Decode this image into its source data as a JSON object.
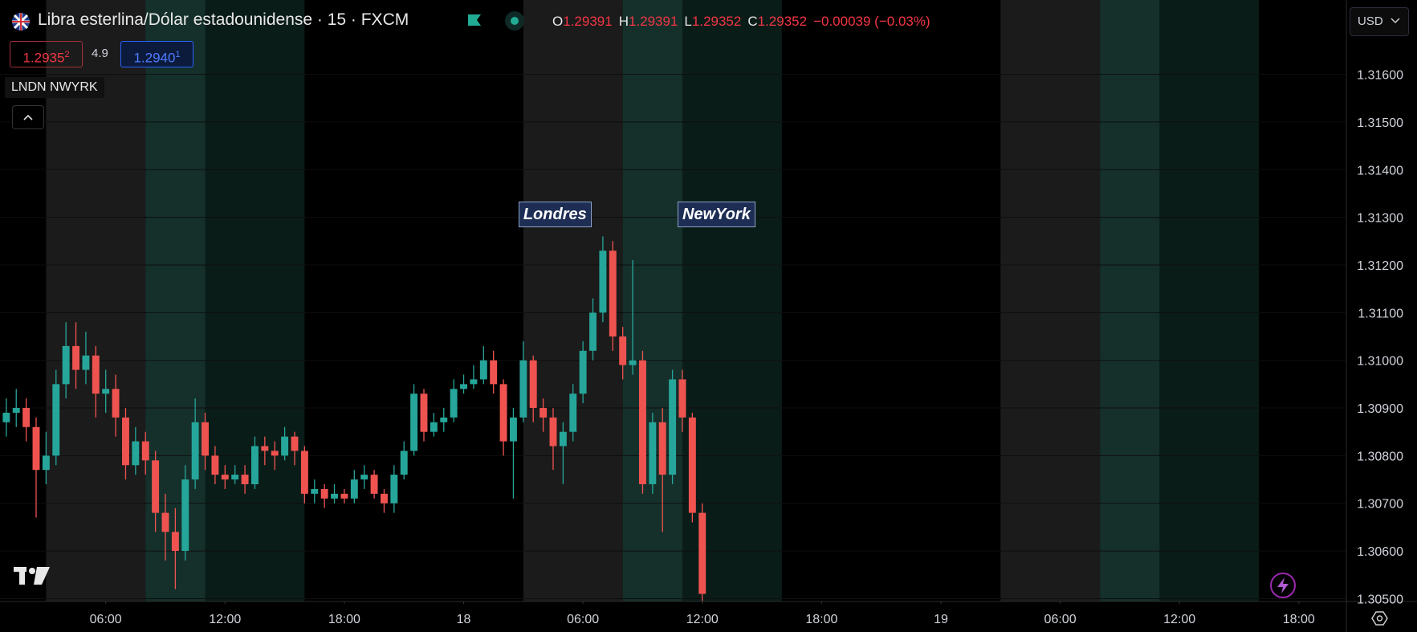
{
  "header": {
    "title": "Libra esterlina/Dólar estadounidense · 15 · FXCM",
    "ohlc": [
      {
        "key": "O",
        "value": "1.29391"
      },
      {
        "key": "H",
        "value": "1.29391"
      },
      {
        "key": "L",
        "value": "1.29352"
      },
      {
        "key": "C",
        "value": "1.29352"
      }
    ],
    "change": "−0.00039 (−0.03%)",
    "bid": {
      "main": "1.2935",
      "pip": "2"
    },
    "spread": "4.9",
    "ask": {
      "main": "1.2940",
      "pip": "1"
    },
    "indicator": "LNDN NWYRK",
    "currency": "USD"
  },
  "chart_data": {
    "type": "candlestick",
    "x": [
      1.0,
      1.5,
      2.0,
      2.5,
      3.0,
      3.5,
      4.0,
      4.5,
      5.0,
      5.5,
      6.0,
      6.5,
      7.0,
      7.5,
      8.0,
      8.5,
      9.0,
      9.5,
      10.0,
      10.5,
      11.0,
      11.5,
      12.0,
      12.5,
      13.0,
      13.5,
      14.0,
      14.5,
      15.0,
      15.5,
      16.0,
      16.5,
      17.0,
      17.5,
      18.0,
      18.5,
      19.0,
      19.5,
      20.0,
      20.5,
      21.0,
      21.5,
      22.0,
      22.5,
      23.0,
      23.5,
      24.0,
      24.5,
      25.0,
      25.5,
      26.0,
      26.5,
      27.0,
      27.5,
      28.0,
      28.5,
      29.0,
      29.5,
      30.0,
      30.5,
      31.0,
      31.5,
      32.0,
      32.5,
      33.0,
      33.5,
      34.0,
      34.5,
      35.0,
      35.5,
      36.0
    ],
    "open": [
      1.3087,
      1.3089,
      1.309,
      1.3086,
      1.3077,
      1.308,
      1.3095,
      1.3103,
      1.3098,
      1.3101,
      1.3093,
      1.3094,
      1.3088,
      1.3078,
      1.3083,
      1.3079,
      1.3068,
      1.3064,
      1.306,
      1.3075,
      1.3087,
      1.308,
      1.3076,
      1.3075,
      1.3076,
      1.3074,
      1.3082,
      1.3081,
      1.308,
      1.3084,
      1.3081,
      1.3072,
      1.3073,
      1.3071,
      1.3072,
      1.3071,
      1.3075,
      1.3076,
      1.3072,
      1.307,
      1.3076,
      1.3081,
      1.3093,
      1.3085,
      1.3087,
      1.3088,
      1.3094,
      1.3095,
      1.3096,
      1.31,
      1.3095,
      1.3083,
      1.3088,
      1.31,
      1.309,
      1.3088,
      1.3082,
      1.3085,
      1.3093,
      1.3102,
      1.311,
      1.3123,
      1.3105,
      1.3099,
      1.31,
      1.3074,
      1.3087,
      1.3076,
      1.3096,
      1.3088,
      1.3068
    ],
    "high": [
      1.3092,
      1.3094,
      1.3092,
      1.3088,
      1.3085,
      1.3098,
      1.3108,
      1.3108,
      1.3106,
      1.3103,
      1.3098,
      1.3097,
      1.309,
      1.3086,
      1.3085,
      1.3081,
      1.3072,
      1.3069,
      1.3078,
      1.3092,
      1.3089,
      1.3082,
      1.3078,
      1.3078,
      1.3078,
      1.3084,
      1.3084,
      1.3083,
      1.3086,
      1.3085,
      1.3082,
      1.3075,
      1.3074,
      1.3074,
      1.3073,
      1.3077,
      1.3078,
      1.3077,
      1.3073,
      1.3078,
      1.3083,
      1.3095,
      1.3094,
      1.3089,
      1.309,
      1.3096,
      1.3097,
      1.3099,
      1.3103,
      1.3102,
      1.3096,
      1.309,
      1.3104,
      1.3101,
      1.3092,
      1.309,
      1.3087,
      1.3095,
      1.3104,
      1.3113,
      1.3126,
      1.3125,
      1.3107,
      1.3121,
      1.3102,
      1.3089,
      1.309,
      1.3098,
      1.3098,
      1.3089,
      1.307
    ],
    "low": [
      1.3084,
      1.3086,
      1.3083,
      1.3067,
      1.3074,
      1.3078,
      1.3092,
      1.3094,
      1.3095,
      1.3088,
      1.3089,
      1.3084,
      1.3075,
      1.3076,
      1.3076,
      1.3064,
      1.3058,
      1.3052,
      1.3058,
      1.3073,
      1.3077,
      1.3074,
      1.3073,
      1.3074,
      1.3072,
      1.3073,
      1.3078,
      1.3077,
      1.3079,
      1.3078,
      1.307,
      1.307,
      1.3069,
      1.307,
      1.307,
      1.307,
      1.3073,
      1.3071,
      1.3068,
      1.3068,
      1.3075,
      1.308,
      1.3083,
      1.3084,
      1.3085,
      1.3087,
      1.3093,
      1.3094,
      1.3095,
      1.3093,
      1.308,
      1.3071,
      1.3087,
      1.3087,
      1.3085,
      1.3077,
      1.3074,
      1.3083,
      1.3091,
      1.31,
      1.3108,
      1.3102,
      1.3096,
      1.3097,
      1.3072,
      1.3072,
      1.3064,
      1.3074,
      1.3085,
      1.3066,
      1.3049
    ],
    "close": [
      1.3089,
      1.309,
      1.3086,
      1.3077,
      1.308,
      1.3095,
      1.3103,
      1.3098,
      1.3101,
      1.3093,
      1.3094,
      1.3088,
      1.3078,
      1.3083,
      1.3079,
      1.3068,
      1.3064,
      1.306,
      1.3075,
      1.3087,
      1.308,
      1.3076,
      1.3075,
      1.3076,
      1.3074,
      1.3082,
      1.3081,
      1.308,
      1.3084,
      1.3081,
      1.3072,
      1.3073,
      1.3071,
      1.3072,
      1.3071,
      1.3075,
      1.3076,
      1.3072,
      1.307,
      1.3076,
      1.3081,
      1.3093,
      1.3085,
      1.3087,
      1.3088,
      1.3094,
      1.3095,
      1.3096,
      1.31,
      1.3095,
      1.3083,
      1.3088,
      1.31,
      1.309,
      1.3088,
      1.3082,
      1.3085,
      1.3093,
      1.3102,
      1.311,
      1.3123,
      1.3105,
      1.3099,
      1.31,
      1.3074,
      1.3087,
      1.3076,
      1.3096,
      1.3088,
      1.3068,
      1.3051
    ],
    "up_color": "#26a69a",
    "down_color": "#ef5350",
    "xlim": [
      0.683,
      68.39
    ],
    "xticks": [
      {
        "value": 6,
        "label": "06:00"
      },
      {
        "value": 12,
        "label": "12:00"
      },
      {
        "value": 18,
        "label": "18:00"
      },
      {
        "value": 24,
        "label": "18"
      },
      {
        "value": 30,
        "label": "06:00"
      },
      {
        "value": 36,
        "label": "12:00"
      },
      {
        "value": 42,
        "label": "18:00"
      },
      {
        "value": 48,
        "label": "19"
      },
      {
        "value": 54,
        "label": "06:00"
      },
      {
        "value": 60,
        "label": "12:00"
      },
      {
        "value": 66,
        "label": "18:00"
      }
    ],
    "ylim": [
      1.30494,
      1.31756
    ],
    "yticks": [
      {
        "value": 1.305,
        "label": "1.30500"
      },
      {
        "value": 1.306,
        "label": "1.30600"
      },
      {
        "value": 1.307,
        "label": "1.30700"
      },
      {
        "value": 1.308,
        "label": "1.30800"
      },
      {
        "value": 1.309,
        "label": "1.30900"
      },
      {
        "value": 1.31,
        "label": "1.31000"
      },
      {
        "value": 1.311,
        "label": "1.31100"
      },
      {
        "value": 1.312,
        "label": "1.31200"
      },
      {
        "value": 1.313,
        "label": "1.31300"
      },
      {
        "value": 1.314,
        "label": "1.31400"
      },
      {
        "value": 1.315,
        "label": "1.31500"
      },
      {
        "value": 1.316,
        "label": "1.31600"
      }
    ],
    "grid": true,
    "sessions": [
      {
        "start": 3,
        "end": 8,
        "color": "#1b1b1b"
      },
      {
        "start": 8,
        "end": 11,
        "color": "#15302b"
      },
      {
        "start": 11,
        "end": 16,
        "color": "#0a1c18"
      },
      {
        "start": 27,
        "end": 32,
        "color": "#1b1b1b",
        "label": "Londres"
      },
      {
        "start": 32,
        "end": 35,
        "color": "#15302b"
      },
      {
        "start": 35,
        "end": 40,
        "color": "#0a1c18",
        "label": "NewYork"
      },
      {
        "start": 51,
        "end": 56,
        "color": "#1b1b1b"
      },
      {
        "start": 56,
        "end": 59,
        "color": "#15302b"
      },
      {
        "start": 59,
        "end": 64,
        "color": "#0a1c18"
      }
    ]
  }
}
